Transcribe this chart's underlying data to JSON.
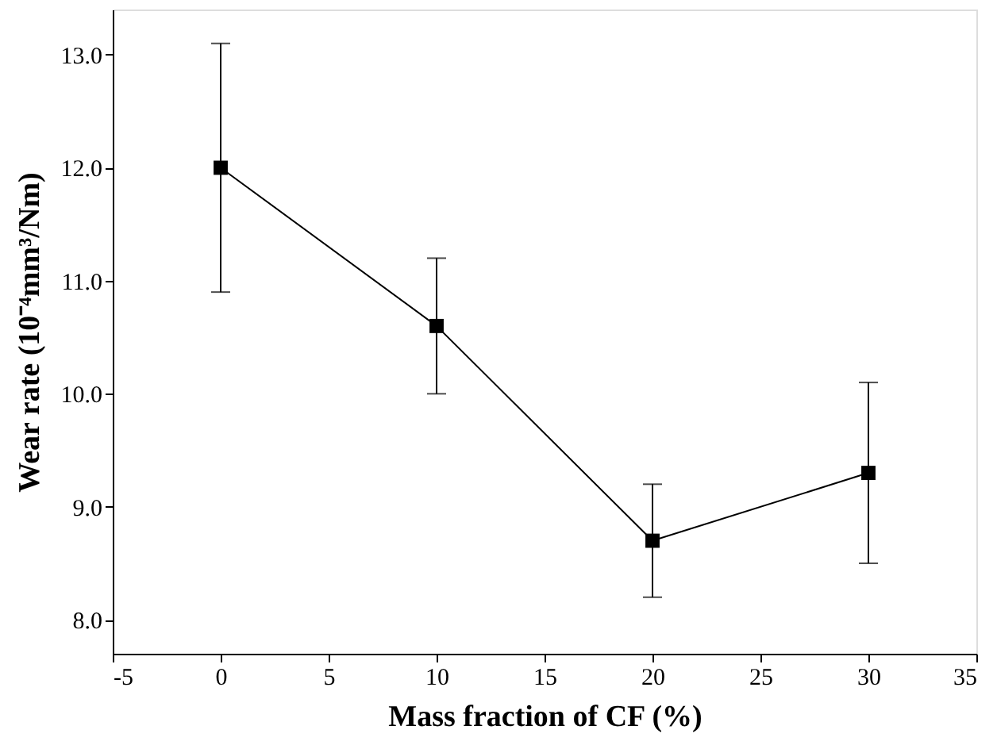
{
  "chart_data": {
    "type": "line",
    "xlabel": "Mass fraction of CF (%)",
    "ylabel": "Wear rate (10⁻⁴mm³/Nm)",
    "x": [
      0,
      10,
      20,
      30
    ],
    "series": [
      {
        "color": "#000000",
        "values": [
          12.0,
          10.6,
          8.7,
          9.3
        ],
        "errors": [
          1.1,
          0.6,
          0.5,
          0.8
        ]
      }
    ],
    "xlim": [
      -5,
      35
    ],
    "xticks": [
      -5,
      0,
      5,
      10,
      15,
      20,
      25,
      30,
      35
    ],
    "ylim": [
      7.7,
      13.4
    ],
    "yticks": [
      {
        "value": 8,
        "label": "8.0"
      },
      {
        "value": 9,
        "label": "9.0"
      },
      {
        "value": 10,
        "label": "10.0"
      },
      {
        "value": 11,
        "label": "11.0"
      },
      {
        "value": 12,
        "label": "12.0"
      },
      {
        "value": 13,
        "label": "13.0"
      }
    ],
    "marker": "square",
    "line_style": "solid",
    "grid": false
  }
}
